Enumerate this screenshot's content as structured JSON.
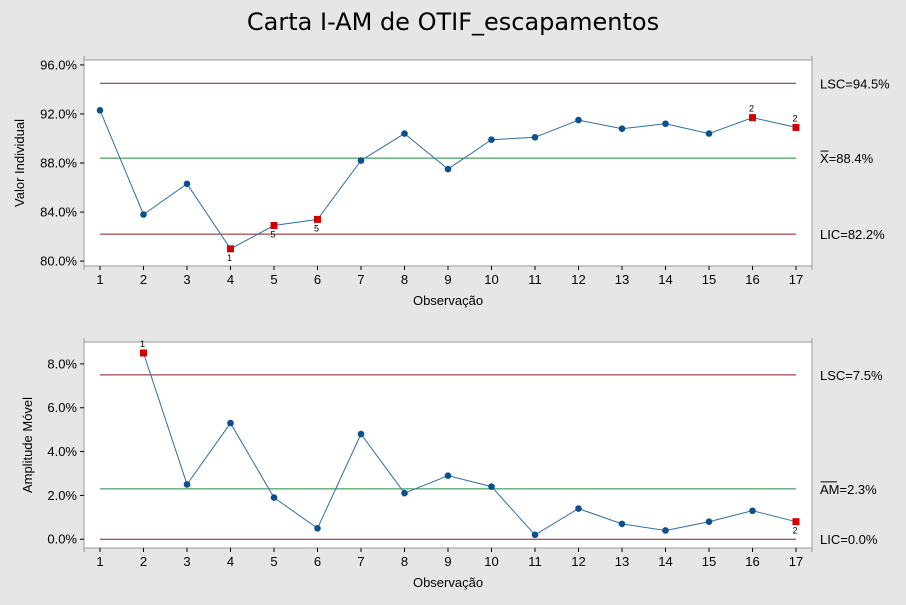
{
  "chart_title": "Carta I-AM de OTIF_escapamentos",
  "colors": {
    "background": "#e6e6e6",
    "plot_bg": "#ffffff",
    "series": "#2e6ea6",
    "point": "#0b4f8f",
    "flagged": "#d40000",
    "control_limit": "#8b1a1a",
    "center_line": "#1e8a3c"
  },
  "chart_data": [
    {
      "type": "line",
      "ylabel": "Valor Individual",
      "xlabel": "Observação",
      "x": [
        1,
        2,
        3,
        4,
        5,
        6,
        7,
        8,
        9,
        10,
        11,
        12,
        13,
        14,
        15,
        16,
        17
      ],
      "values": [
        92.3,
        83.8,
        86.3,
        81.0,
        82.9,
        83.4,
        88.2,
        90.4,
        87.5,
        89.9,
        90.1,
        91.5,
        90.8,
        91.2,
        90.4,
        91.7,
        90.9
      ],
      "flagged_points": [
        {
          "x": 4,
          "label": "1",
          "label_pos": "below"
        },
        {
          "x": 5,
          "label": "5",
          "label_pos": "below"
        },
        {
          "x": 6,
          "label": "5",
          "label_pos": "below"
        },
        {
          "x": 16,
          "label": "2",
          "label_pos": "above"
        },
        {
          "x": 17,
          "label": "2",
          "label_pos": "above"
        }
      ],
      "ylim": [
        79.6,
        96.4
      ],
      "yticks": [
        80,
        84,
        88,
        92,
        96
      ],
      "ytick_labels": [
        "80.0%",
        "84.0%",
        "88.0%",
        "92.0%",
        "96.0%"
      ],
      "limits": [
        {
          "kind": "ucl",
          "value": 94.5,
          "label": "LSC=94.5%"
        },
        {
          "kind": "center",
          "value": 88.4,
          "label_symbol": "X",
          "label_rest": "=88.4%"
        },
        {
          "kind": "lcl",
          "value": 82.2,
          "label": "LIC=82.2%"
        }
      ]
    },
    {
      "type": "line",
      "ylabel": "Amplitude Móvel",
      "xlabel": "Observação",
      "x": [
        2,
        3,
        4,
        5,
        6,
        7,
        8,
        9,
        10,
        11,
        12,
        13,
        14,
        15,
        16,
        17
      ],
      "values": [
        8.5,
        2.5,
        5.3,
        1.9,
        0.5,
        4.8,
        2.1,
        2.9,
        2.4,
        0.2,
        1.4,
        0.7,
        0.4,
        0.8,
        1.3,
        0.8
      ],
      "flagged_points": [
        {
          "x": 2,
          "label": "1",
          "label_pos": "above"
        },
        {
          "x": 17,
          "label": "2",
          "label_pos": "below"
        }
      ],
      "ylim": [
        -0.4,
        9.0
      ],
      "yticks": [
        0,
        2,
        4,
        6,
        8
      ],
      "ytick_labels": [
        "0.0%",
        "2.0%",
        "4.0%",
        "6.0%",
        "8.0%"
      ],
      "limits": [
        {
          "kind": "ucl",
          "value": 7.5,
          "label": "LSC=7.5%"
        },
        {
          "kind": "center",
          "value": 2.3,
          "label_symbol": "AM",
          "label_rest": "=2.3%"
        },
        {
          "kind": "lcl",
          "value": 0.0,
          "label": "LIC=0.0%"
        }
      ]
    }
  ],
  "x_ticks": [
    "1",
    "2",
    "3",
    "4",
    "5",
    "6",
    "7",
    "8",
    "9",
    "10",
    "11",
    "12",
    "13",
    "14",
    "15",
    "16",
    "17"
  ]
}
